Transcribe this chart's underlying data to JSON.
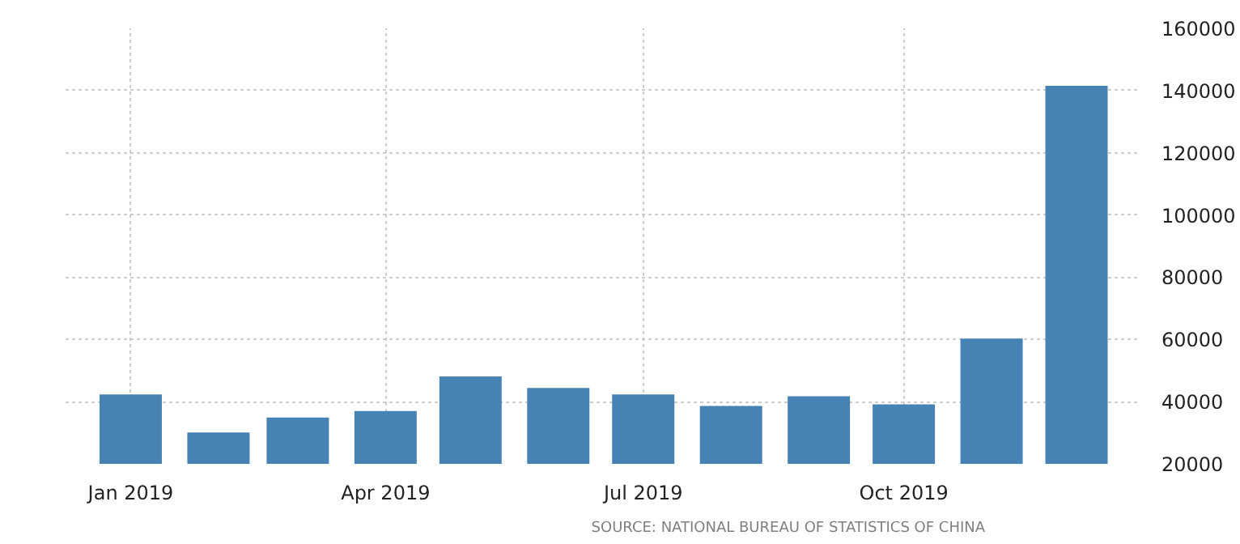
{
  "chart_data": {
    "type": "bar",
    "x": [
      "2019-01",
      "2019-02",
      "2019-03",
      "2019-04",
      "2019-05",
      "2019-06",
      "2019-07",
      "2019-08",
      "2019-09",
      "2019-10",
      "2019-11",
      "2019-12"
    ],
    "values": [
      42300,
      30100,
      34900,
      37000,
      48100,
      44400,
      42300,
      38600,
      41700,
      39100,
      60300,
      141500
    ],
    "color": "#4682b4",
    "xlim": [
      "2018-12-09",
      "2019-12-23"
    ],
    "xticks": [
      {
        "value": "2019-01",
        "label": "Jan 2019"
      },
      {
        "value": "2019-04",
        "label": "Apr 2019"
      },
      {
        "value": "2019-07",
        "label": "Jul 2019"
      },
      {
        "value": "2019-10",
        "label": "Oct 2019"
      }
    ],
    "ylim": [
      20000,
      160000
    ],
    "yticks": [
      20000,
      40000,
      60000,
      80000,
      100000,
      120000,
      140000,
      160000
    ],
    "grid": true,
    "annotations": [
      "SOURCE: NATIONAL BUREAU OF STATISTICS OF CHINA"
    ]
  }
}
